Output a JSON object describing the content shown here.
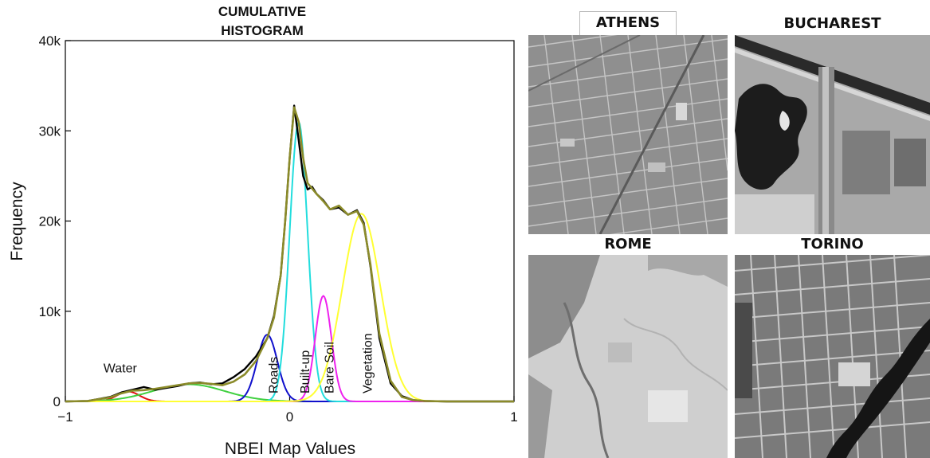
{
  "chart_data": {
    "type": "line",
    "title": "CUMULATIVE HISTOGRAM",
    "title_lines": [
      "CUMULATIVE",
      "HISTOGRAM"
    ],
    "xlabel": "NBEI Map Values",
    "ylabel": "Frequency",
    "xlim": [
      -1,
      1
    ],
    "ylim": [
      0,
      40000
    ],
    "x_ticks": [
      -1,
      0,
      1
    ],
    "x_tick_labels": [
      "−1",
      "0",
      "1"
    ],
    "y_ticks": [
      0,
      10000,
      20000,
      30000,
      40000
    ],
    "y_tick_labels": [
      "0",
      "10k",
      "20k",
      "30k",
      "40k"
    ],
    "grid": false,
    "histogram": {
      "color": "#000000",
      "x": [
        -1.0,
        -0.9,
        -0.8,
        -0.75,
        -0.7,
        -0.65,
        -0.6,
        -0.5,
        -0.45,
        -0.4,
        -0.35,
        -0.3,
        -0.25,
        -0.2,
        -0.15,
        -0.1,
        -0.07,
        -0.04,
        -0.02,
        0.0,
        0.02,
        0.04,
        0.06,
        0.08,
        0.1,
        0.12,
        0.15,
        0.18,
        0.22,
        0.26,
        0.3,
        0.33,
        0.36,
        0.4,
        0.45,
        0.5,
        0.55,
        0.6,
        0.7,
        0.8,
        1.0
      ],
      "y": [
        0,
        50,
        500,
        1000,
        1300,
        1600,
        1300,
        1700,
        2000,
        2100,
        1900,
        2000,
        2700,
        3600,
        5000,
        7000,
        9500,
        14000,
        20000,
        27000,
        32800,
        29000,
        25000,
        23500,
        23800,
        23000,
        22300,
        21300,
        21500,
        20700,
        21200,
        19800,
        15000,
        7000,
        2000,
        600,
        150,
        50,
        0,
        0,
        0
      ]
    },
    "fit": {
      "color": "#8b8b2a",
      "x": [
        -1.0,
        -0.9,
        -0.8,
        -0.75,
        -0.7,
        -0.65,
        -0.6,
        -0.5,
        -0.45,
        -0.4,
        -0.35,
        -0.3,
        -0.25,
        -0.2,
        -0.15,
        -0.1,
        -0.07,
        -0.04,
        -0.02,
        0.0,
        0.02,
        0.04,
        0.06,
        0.08,
        0.1,
        0.12,
        0.15,
        0.18,
        0.22,
        0.26,
        0.3,
        0.33,
        0.36,
        0.4,
        0.45,
        0.5,
        0.55,
        0.6,
        0.7,
        0.8,
        1.0
      ],
      "y": [
        0,
        50,
        450,
        900,
        1200,
        1250,
        1400,
        1800,
        2000,
        2050,
        1950,
        1800,
        2200,
        3000,
        4500,
        7000,
        9300,
        14000,
        20000,
        27000,
        32600,
        31000,
        27000,
        24200,
        23600,
        23000,
        22200,
        21300,
        21700,
        20700,
        21100,
        19600,
        15200,
        7500,
        2300,
        500,
        150,
        50,
        0,
        0,
        0
      ]
    },
    "components": [
      {
        "label": "Water",
        "color": "#e01010",
        "mu": -0.72,
        "sigma": 0.05,
        "amp": 1100
      },
      {
        "color": "#40d040",
        "mu": -0.45,
        "sigma": 0.16,
        "amp": 1900
      },
      {
        "label": "Roads",
        "color": "#1010cc",
        "mu": -0.1,
        "sigma": 0.045,
        "amp": 7400
      },
      {
        "label": "Built-up",
        "color": "#22dddd",
        "mu": 0.04,
        "sigma": 0.04,
        "amp": 31000
      },
      {
        "label": "Bare Soil",
        "color": "#ee22ee",
        "mu": 0.15,
        "sigma": 0.036,
        "amp": 11700
      },
      {
        "label": "Vegetation",
        "color": "#ffff33",
        "mu": 0.32,
        "sigma": 0.085,
        "amp": 20800
      }
    ]
  },
  "images": [
    {
      "label": "ATHENS"
    },
    {
      "label": "BUCHAREST"
    },
    {
      "label": "ROME"
    },
    {
      "label": "TORINO"
    }
  ]
}
